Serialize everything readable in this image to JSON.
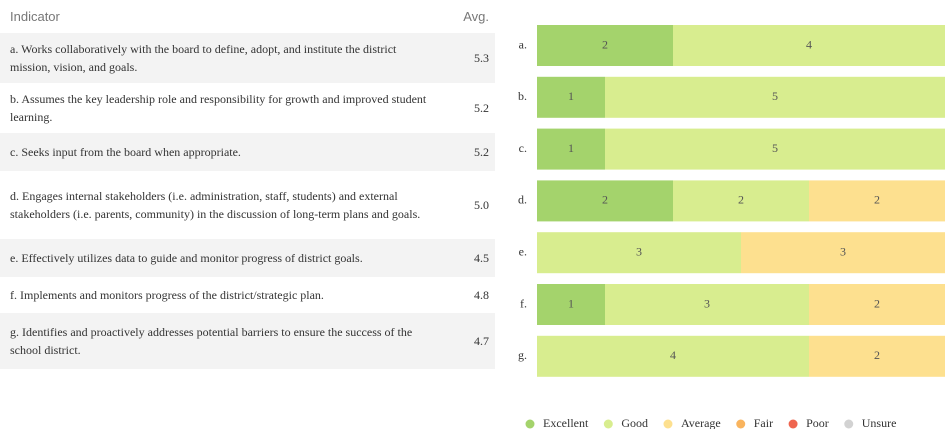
{
  "table": {
    "header": [
      "Indicator",
      "Avg."
    ],
    "rows": [
      [
        "a. Works collaboratively with the board to define, adopt, and institute the district mission, vision, and goals.",
        "5.3"
      ],
      [
        "b. Assumes the key leadership role and responsibility for growth and improved student learning.",
        "5.2"
      ],
      [
        "c. Seeks input from the board when appropriate.",
        "5.2"
      ],
      [
        "d. Engages internal stakeholders (i.e. administration, staff, students) and external stakeholders (i.e. parents, community) in the discussion of long-term plans and goals.",
        "5.0"
      ],
      [
        "e. Effectively utilizes data to guide and monitor progress of district goals.",
        "4.5"
      ],
      [
        "f. Implements and monitors progress of the district/strategic plan.",
        "4.8"
      ],
      [
        "g. Identifies and proactively addresses potential barriers to ensure the success of the school district.",
        "4.7"
      ]
    ]
  },
  "chart_data": {
    "type": "stacked_bar_horizontal",
    "categories": [
      "a.",
      "b.",
      "c.",
      "d.",
      "e.",
      "f.",
      "g."
    ],
    "xlim": [
      0,
      6
    ],
    "legend": "bottom",
    "series": [
      {
        "name": "Excellent",
        "color": "#a4d36c",
        "values": [
          2,
          1,
          1,
          2,
          0,
          1,
          0
        ]
      },
      {
        "name": "Good",
        "color": "#d8ed8f",
        "values": [
          4,
          5,
          5,
          2,
          3,
          3,
          4
        ]
      },
      {
        "name": "Average",
        "color": "#fde08f",
        "values": [
          0,
          0,
          0,
          2,
          3,
          2,
          2
        ]
      },
      {
        "name": "Fair",
        "color": "#f9b45e",
        "values": [
          0,
          0,
          0,
          0,
          0,
          0,
          0
        ]
      },
      {
        "name": "Poor",
        "color": "#ef654f",
        "values": [
          0,
          0,
          0,
          0,
          0,
          0,
          0
        ]
      },
      {
        "name": "Unsure",
        "color": "#d2d2d2",
        "values": [
          0,
          0,
          0,
          0,
          0,
          0,
          0
        ]
      }
    ]
  }
}
